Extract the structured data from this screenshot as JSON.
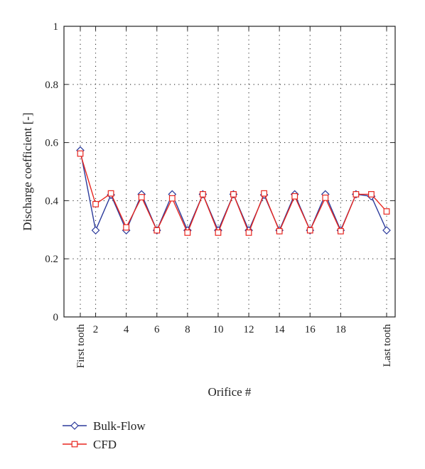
{
  "chart_data": {
    "type": "line",
    "xlabel": "Orifice #",
    "ylabel": "Discharge coefficient [-]",
    "ylim": [
      0,
      1
    ],
    "xlim": [
      0,
      20
    ],
    "grid": true,
    "grid_style": "dotted",
    "legend_position": "bottom-left",
    "y_ticks": [
      {
        "value": 0,
        "label": "0"
      },
      {
        "value": 0.2,
        "label": "0.2"
      },
      {
        "value": 0.4,
        "label": "0.4"
      },
      {
        "value": 0.6,
        "label": "0.6"
      },
      {
        "value": 0.8,
        "label": "0.8"
      },
      {
        "value": 1,
        "label": "1"
      }
    ],
    "x_ticks": [
      {
        "value": 0,
        "label": "First tooth",
        "rotated": true
      },
      {
        "value": 1,
        "label": "2",
        "rotated": false
      },
      {
        "value": 3,
        "label": "4",
        "rotated": false
      },
      {
        "value": 5,
        "label": "6",
        "rotated": false
      },
      {
        "value": 7,
        "label": "8",
        "rotated": false
      },
      {
        "value": 9,
        "label": "10",
        "rotated": false
      },
      {
        "value": 11,
        "label": "12",
        "rotated": false
      },
      {
        "value": 13,
        "label": "14",
        "rotated": false
      },
      {
        "value": 15,
        "label": "16",
        "rotated": false
      },
      {
        "value": 17,
        "label": "18",
        "rotated": false
      },
      {
        "value": 20,
        "label": "Last tooth",
        "rotated": true
      }
    ],
    "x": [
      0,
      1,
      2,
      3,
      4,
      5,
      6,
      7,
      8,
      9,
      10,
      11,
      12,
      13,
      14,
      15,
      16,
      17,
      18,
      19,
      20
    ],
    "series": [
      {
        "name": "Bulk-Flow",
        "color": "#2b3a9b",
        "marker": "diamond",
        "values": [
          0.573,
          0.298,
          0.42,
          0.298,
          0.422,
          0.298,
          0.422,
          0.298,
          0.422,
          0.298,
          0.422,
          0.298,
          0.42,
          0.298,
          0.422,
          0.298,
          0.422,
          0.298,
          0.422,
          0.415,
          0.298
        ]
      },
      {
        "name": "CFD",
        "color": "#e8261f",
        "marker": "square",
        "values": [
          0.562,
          0.388,
          0.425,
          0.308,
          0.412,
          0.298,
          0.408,
          0.29,
          0.422,
          0.29,
          0.422,
          0.29,
          0.425,
          0.295,
          0.415,
          0.298,
          0.41,
          0.295,
          0.422,
          0.422,
          0.363
        ]
      }
    ]
  }
}
